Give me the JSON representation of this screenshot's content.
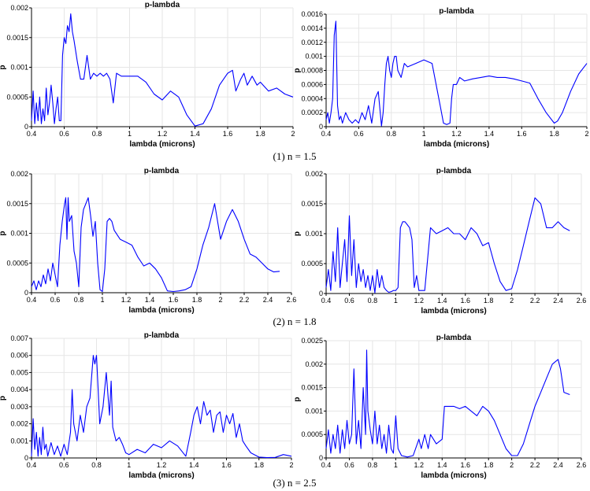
{
  "captions": [
    "(1) n = 1.5",
    "(2) n = 1.8",
    "(3) n = 2.5"
  ],
  "colors": {
    "series": "#0000ff",
    "grid": "#e6e6e6",
    "axis": "#000000"
  },
  "chart_data": [
    {
      "type": "line",
      "title": "p-lambda",
      "xlabel": "lambda (microns)",
      "ylabel": "p",
      "xlim": [
        0.4,
        2.0
      ],
      "ylim": [
        0,
        0.002
      ],
      "xticks": [
        "0.4",
        "0.6",
        "0.8",
        "1",
        "1.2",
        "1.4",
        "1.6",
        "1.8",
        "2"
      ],
      "yticks": [
        "0",
        "0.0005",
        "0.001",
        "0.0015",
        "0.002"
      ],
      "grid": true,
      "x": [
        0.4,
        0.41,
        0.42,
        0.43,
        0.44,
        0.45,
        0.46,
        0.47,
        0.48,
        0.49,
        0.5,
        0.51,
        0.52,
        0.53,
        0.54,
        0.55,
        0.56,
        0.57,
        0.58,
        0.59,
        0.6,
        0.61,
        0.62,
        0.63,
        0.64,
        0.65,
        0.66,
        0.68,
        0.7,
        0.72,
        0.74,
        0.76,
        0.78,
        0.8,
        0.82,
        0.84,
        0.86,
        0.88,
        0.9,
        0.92,
        0.95,
        1.0,
        1.05,
        1.1,
        1.15,
        1.2,
        1.25,
        1.3,
        1.35,
        1.4,
        1.45,
        1.5,
        1.55,
        1.6,
        1.63,
        1.65,
        1.68,
        1.7,
        1.72,
        1.75,
        1.78,
        1.8,
        1.85,
        1.9,
        1.95,
        2.0
      ],
      "y": [
        0.0001,
        0.0006,
        5e-05,
        0.0004,
        0.0001,
        0.0005,
        5e-05,
        0.0003,
        0.0001,
        0.00065,
        0.0002,
        0.0004,
        0.0007,
        0.0004,
        5e-05,
        0.0003,
        0.0005,
        0.0001,
        0.0001,
        0.0012,
        0.0015,
        0.0014,
        0.0017,
        0.0016,
        0.0019,
        0.0016,
        0.00145,
        0.0011,
        0.0008,
        0.0008,
        0.0012,
        0.0008,
        0.0009,
        0.00085,
        0.0009,
        0.00085,
        0.0009,
        0.0008,
        0.0004,
        0.0009,
        0.00085,
        0.00085,
        0.00085,
        0.00075,
        0.00055,
        0.00045,
        0.0006,
        0.0005,
        0.0002,
        1e-05,
        5e-05,
        0.0003,
        0.0007,
        0.0009,
        0.00095,
        0.0006,
        0.0008,
        0.0009,
        0.0007,
        0.00085,
        0.0007,
        0.00075,
        0.0006,
        0.00065,
        0.00055,
        0.0005
      ]
    },
    {
      "type": "line",
      "title": "p-lambda",
      "xlabel": "lambda (microns)",
      "ylabel": "p",
      "xlim": [
        0.4,
        2.0
      ],
      "ylim": [
        0,
        0.0016
      ],
      "xticks": [
        "0.4",
        "0.6",
        "0.8",
        "1",
        "1.2",
        "1.4",
        "1.6",
        "1.8",
        "2"
      ],
      "yticks": [
        "0",
        "0.0002",
        "0.0004",
        "0.0006",
        "0.0008",
        "0.001",
        "0.0012",
        "0.0014",
        "0.0016"
      ],
      "grid": true,
      "x": [
        0.4,
        0.41,
        0.42,
        0.43,
        0.44,
        0.45,
        0.46,
        0.47,
        0.48,
        0.49,
        0.5,
        0.52,
        0.54,
        0.56,
        0.58,
        0.6,
        0.62,
        0.64,
        0.66,
        0.68,
        0.7,
        0.72,
        0.74,
        0.75,
        0.76,
        0.77,
        0.78,
        0.79,
        0.8,
        0.81,
        0.82,
        0.83,
        0.84,
        0.86,
        0.88,
        0.9,
        0.95,
        1.0,
        1.05,
        1.1,
        1.12,
        1.14,
        1.16,
        1.17,
        1.18,
        1.2,
        1.22,
        1.25,
        1.3,
        1.35,
        1.4,
        1.45,
        1.5,
        1.55,
        1.6,
        1.65,
        1.7,
        1.75,
        1.8,
        1.82,
        1.85,
        1.9,
        1.95,
        2.0
      ],
      "y": [
        0.0001,
        0.0002,
        5e-05,
        0.0002,
        0.0004,
        0.0013,
        0.0015,
        0.0003,
        0.0001,
        0.00015,
        5e-05,
        0.0002,
        0.0001,
        5e-05,
        0.0001,
        5e-05,
        0.0002,
        0.0001,
        0.0003,
        5e-05,
        0.0004,
        0.0005,
        1e-05,
        0.0002,
        0.0006,
        0.0009,
        0.001,
        0.0008,
        0.0007,
        0.0009,
        0.001,
        0.001,
        0.0008,
        0.0007,
        0.0009,
        0.00085,
        0.0009,
        0.00095,
        0.0009,
        0.0003,
        5e-05,
        3e-05,
        5e-05,
        0.0004,
        0.0006,
        0.0006,
        0.0007,
        0.00065,
        0.00068,
        0.0007,
        0.00072,
        0.0007,
        0.0007,
        0.00068,
        0.00065,
        0.00062,
        0.0004,
        0.0002,
        5e-05,
        8e-05,
        0.0002,
        0.0005,
        0.00075,
        0.0009
      ]
    },
    {
      "type": "line",
      "title": "p-lambda",
      "xlabel": "lambda (microns)",
      "ylabel": "p",
      "xlim": [
        0.4,
        2.6
      ],
      "ylim": [
        0,
        0.002
      ],
      "xticks": [
        "0.4",
        "0.6",
        "0.8",
        "1",
        "1.2",
        "1.4",
        "1.6",
        "1.8",
        "2",
        "2.2",
        "2.4",
        "2.6"
      ],
      "yticks": [
        "0",
        "0.0005",
        "0.001",
        "0.0015",
        "0.002"
      ],
      "grid": true,
      "x": [
        0.4,
        0.42,
        0.44,
        0.46,
        0.48,
        0.5,
        0.52,
        0.54,
        0.56,
        0.58,
        0.6,
        0.62,
        0.64,
        0.66,
        0.68,
        0.69,
        0.7,
        0.71,
        0.72,
        0.74,
        0.76,
        0.78,
        0.8,
        0.82,
        0.84,
        0.86,
        0.88,
        0.9,
        0.92,
        0.94,
        0.96,
        0.98,
        1.0,
        1.02,
        1.04,
        1.06,
        1.08,
        1.1,
        1.15,
        1.2,
        1.25,
        1.3,
        1.35,
        1.4,
        1.45,
        1.5,
        1.55,
        1.6,
        1.65,
        1.7,
        1.75,
        1.8,
        1.85,
        1.9,
        1.95,
        2.0,
        2.05,
        2.1,
        2.15,
        2.2,
        2.25,
        2.3,
        2.35,
        2.4,
        2.45,
        2.5
      ],
      "y": [
        0.0001,
        0.0002,
        5e-05,
        0.0002,
        0.0001,
        0.0003,
        0.00015,
        0.0004,
        0.0002,
        0.0005,
        0.0003,
        0.0001,
        0.0008,
        0.0012,
        0.0015,
        0.0016,
        0.0009,
        0.0016,
        0.0012,
        0.0013,
        0.0007,
        0.0005,
        0.0001,
        0.0011,
        0.0014,
        0.0015,
        0.0016,
        0.0013,
        0.00095,
        0.0012,
        0.0005,
        5e-05,
        2e-05,
        0.0004,
        0.0012,
        0.00125,
        0.0012,
        0.00105,
        0.0009,
        0.00085,
        0.0008,
        0.0006,
        0.00045,
        0.0005,
        0.0004,
        0.00025,
        3e-05,
        2e-05,
        3e-05,
        5e-05,
        0.0001,
        0.0004,
        0.0008,
        0.0011,
        0.0015,
        0.0009,
        0.0012,
        0.0014,
        0.0012,
        0.0009,
        0.00065,
        0.0006,
        0.0005,
        0.0004,
        0.00035,
        0.00036
      ]
    },
    {
      "type": "line",
      "title": "p-lambda",
      "xlabel": "lambda (microns)",
      "ylabel": "p",
      "xlim": [
        0.4,
        2.6
      ],
      "ylim": [
        0,
        0.002
      ],
      "xticks": [
        "0.4",
        "0.6",
        "0.8",
        "1",
        "1.2",
        "1.4",
        "1.6",
        "1.8",
        "2",
        "2.2",
        "2.4",
        "2.6"
      ],
      "yticks": [
        "0",
        "0.0005",
        "0.001",
        "0.0015",
        "0.002"
      ],
      "grid": true,
      "x": [
        0.4,
        0.42,
        0.44,
        0.46,
        0.48,
        0.5,
        0.52,
        0.54,
        0.56,
        0.58,
        0.6,
        0.62,
        0.64,
        0.66,
        0.68,
        0.7,
        0.72,
        0.74,
        0.76,
        0.78,
        0.8,
        0.82,
        0.84,
        0.86,
        0.88,
        0.9,
        0.92,
        0.94,
        0.96,
        0.98,
        1.0,
        1.02,
        1.04,
        1.06,
        1.08,
        1.1,
        1.12,
        1.14,
        1.16,
        1.18,
        1.2,
        1.25,
        1.3,
        1.35,
        1.4,
        1.45,
        1.5,
        1.55,
        1.6,
        1.65,
        1.7,
        1.75,
        1.8,
        1.85,
        1.9,
        1.95,
        2.0,
        2.05,
        2.1,
        2.15,
        2.2,
        2.25,
        2.3,
        2.35,
        2.4,
        2.45,
        2.5
      ],
      "y": [
        0.0001,
        0.0004,
        5e-05,
        0.0007,
        0.0002,
        0.0011,
        0.0001,
        0.0005,
        0.0009,
        0.0002,
        0.0013,
        0.0003,
        0.0009,
        0.0001,
        0.0005,
        0.0002,
        0.0004,
        0.0001,
        0.0003,
        5e-05,
        0.0003,
        1e-05,
        0.0004,
        0.0001,
        0.0003,
        0.0001,
        5e-05,
        2e-05,
        3e-05,
        5e-05,
        5e-05,
        0.0001,
        0.0011,
        0.0012,
        0.0012,
        0.00115,
        0.0011,
        0.0009,
        0.0001,
        0.0003,
        5e-05,
        5e-05,
        0.0011,
        0.001,
        0.00105,
        0.0011,
        0.001,
        0.001,
        0.0009,
        0.0011,
        0.001,
        0.0008,
        0.00085,
        0.0005,
        0.0002,
        5e-05,
        8e-05,
        0.0004,
        0.0008,
        0.0012,
        0.0016,
        0.0015,
        0.0011,
        0.0011,
        0.0012,
        0.0011,
        0.00105
      ]
    },
    {
      "type": "line",
      "title": "p-lambda",
      "xlabel": "lambda (microns)",
      "ylabel": "p",
      "xlim": [
        0.4,
        2.0
      ],
      "ylim": [
        0,
        0.007
      ],
      "xticks": [
        "0.4",
        "0.6",
        "0.8",
        "1",
        "1.2",
        "1.4",
        "1.6",
        "1.8",
        "2"
      ],
      "yticks": [
        "0",
        "0.001",
        "0.002",
        "0.003",
        "0.004",
        "0.005",
        "0.006",
        "0.007"
      ],
      "grid": true,
      "x": [
        0.4,
        0.41,
        0.42,
        0.43,
        0.44,
        0.45,
        0.46,
        0.47,
        0.48,
        0.49,
        0.5,
        0.52,
        0.54,
        0.56,
        0.58,
        0.6,
        0.62,
        0.64,
        0.65,
        0.66,
        0.68,
        0.7,
        0.72,
        0.74,
        0.76,
        0.78,
        0.79,
        0.8,
        0.81,
        0.82,
        0.84,
        0.86,
        0.88,
        0.89,
        0.9,
        0.92,
        0.94,
        0.96,
        0.98,
        1.0,
        1.05,
        1.1,
        1.15,
        1.2,
        1.25,
        1.3,
        1.35,
        1.38,
        1.4,
        1.42,
        1.44,
        1.46,
        1.48,
        1.5,
        1.52,
        1.54,
        1.56,
        1.58,
        1.6,
        1.62,
        1.64,
        1.66,
        1.68,
        1.7,
        1.72,
        1.75,
        1.8,
        1.85,
        1.9,
        1.95,
        2.0
      ],
      "y": [
        0.0001,
        0.0023,
        0.0005,
        0.0015,
        0.0001,
        0.0012,
        0.0002,
        0.0018,
        0.0005,
        0.0008,
        0.0001,
        0.0009,
        0.0002,
        0.0007,
        0.0001,
        0.0008,
        0.0002,
        0.0015,
        0.004,
        0.002,
        0.001,
        0.0025,
        0.0015,
        0.003,
        0.0035,
        0.006,
        0.0055,
        0.006,
        0.004,
        0.002,
        0.003,
        0.005,
        0.0025,
        0.0045,
        0.0018,
        0.001,
        0.0012,
        0.0008,
        0.0003,
        0.0002,
        0.0005,
        0.0003,
        0.0008,
        0.0006,
        0.001,
        0.0007,
        0.0001,
        0.0015,
        0.0025,
        0.003,
        0.002,
        0.0033,
        0.0025,
        0.0028,
        0.0015,
        0.0025,
        0.0027,
        0.0015,
        0.0025,
        0.002,
        0.0026,
        0.0012,
        0.002,
        0.001,
        0.0007,
        0.0003,
        5e-05,
        2e-05,
        3e-05,
        0.0002,
        0.0001
      ]
    },
    {
      "type": "line",
      "title": "p-lambda",
      "xlabel": "lambda (microns)",
      "ylabel": "p",
      "xlim": [
        0.4,
        2.6
      ],
      "ylim": [
        0,
        0.0025
      ],
      "xticks": [
        "0.4",
        "0.6",
        "0.8",
        "1",
        "1.2",
        "1.4",
        "1.6",
        "1.8",
        "2",
        "2.2",
        "2.4",
        "2.6"
      ],
      "yticks": [
        "0",
        "0.0005",
        "0.001",
        "0.0015",
        "0.002",
        "0.0025"
      ],
      "grid": true,
      "x": [
        0.4,
        0.42,
        0.44,
        0.46,
        0.48,
        0.5,
        0.52,
        0.54,
        0.56,
        0.58,
        0.6,
        0.62,
        0.64,
        0.66,
        0.68,
        0.7,
        0.72,
        0.74,
        0.75,
        0.76,
        0.78,
        0.8,
        0.82,
        0.84,
        0.86,
        0.88,
        0.9,
        0.92,
        0.94,
        0.96,
        0.98,
        1.0,
        1.02,
        1.05,
        1.1,
        1.15,
        1.2,
        1.22,
        1.25,
        1.28,
        1.3,
        1.35,
        1.4,
        1.42,
        1.45,
        1.5,
        1.55,
        1.6,
        1.65,
        1.7,
        1.75,
        1.8,
        1.85,
        1.9,
        1.95,
        2.0,
        2.05,
        2.1,
        2.15,
        2.2,
        2.25,
        2.3,
        2.35,
        2.4,
        2.42,
        2.45,
        2.5
      ],
      "y": [
        0.0002,
        0.0006,
        0.0001,
        0.0005,
        0.0002,
        0.0007,
        0.0001,
        0.0006,
        0.0002,
        0.0008,
        0.0003,
        0.0005,
        0.0019,
        0.0003,
        0.0008,
        0.0002,
        0.0015,
        0.0005,
        0.0023,
        0.001,
        0.0006,
        0.0003,
        0.001,
        0.0003,
        0.0007,
        0.0002,
        0.0005,
        0.0001,
        0.0007,
        0.0002,
        0.0001,
        0.0009,
        0.0002,
        5e-05,
        2e-05,
        5e-05,
        0.0004,
        0.0002,
        0.0005,
        0.0002,
        0.0005,
        0.0003,
        0.0004,
        0.0011,
        0.0011,
        0.0011,
        0.00105,
        0.0011,
        0.001,
        0.0009,
        0.0011,
        0.001,
        0.0008,
        0.0005,
        0.0002,
        5e-05,
        5e-05,
        0.0003,
        0.0007,
        0.0011,
        0.0014,
        0.0017,
        0.002,
        0.0021,
        0.0019,
        0.0014,
        0.00135
      ]
    }
  ]
}
